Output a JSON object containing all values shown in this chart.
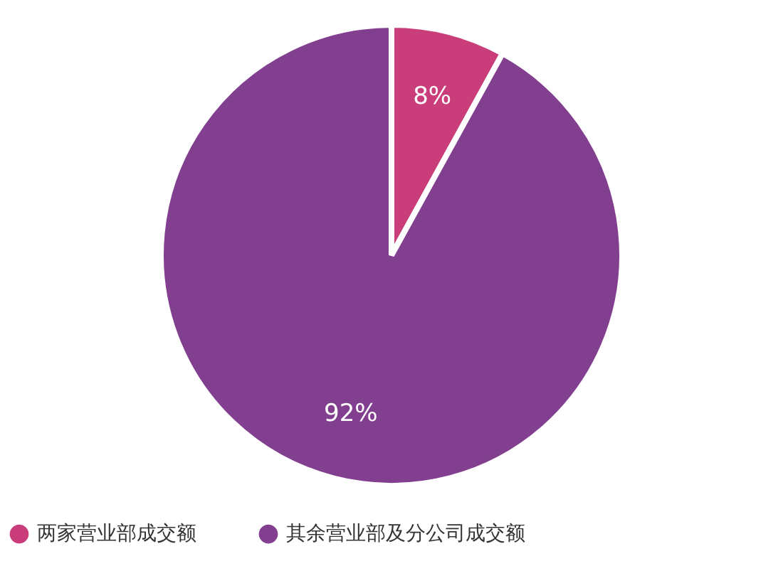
{
  "chart_data": {
    "type": "pie",
    "categories": [
      "两家营业部成交额",
      "其余营业部及分公司成交额"
    ],
    "values": [
      8,
      92
    ],
    "colors": [
      "#c93d7b",
      "#833f8f"
    ],
    "value_labels": [
      "8%",
      "92%"
    ],
    "legend": "bottom"
  }
}
